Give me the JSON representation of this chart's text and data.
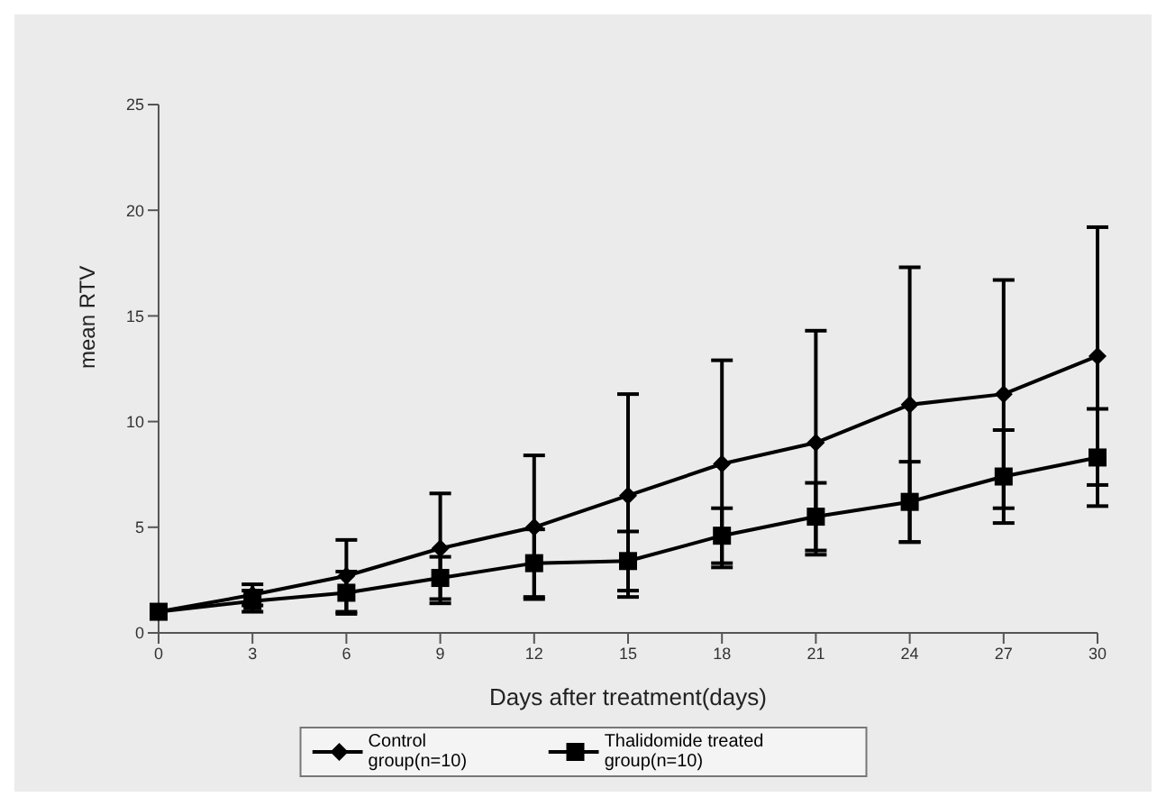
{
  "chart_data": {
    "type": "line",
    "xlabel": "Days after treatment(days)",
    "ylabel": "mean RTV",
    "categories": [
      "0",
      "3",
      "6",
      "9",
      "12",
      "15",
      "18",
      "21",
      "24",
      "27",
      "30"
    ],
    "series": [
      {
        "name": "Control group(n=10)",
        "color": "#000000",
        "marker": "diamond",
        "values": [
          1,
          1.8,
          2.7,
          4,
          5,
          6.5,
          8,
          9,
          10.8,
          11.3,
          13.1
        ],
        "errors": [
          0,
          0.5,
          1.7,
          2.6,
          3.4,
          4.8,
          4.9,
          5.3,
          6.5,
          5.4,
          6.1
        ]
      },
      {
        "name": "Thalidomide treated group(n=10)",
        "color": "#000000",
        "marker": "square",
        "values": [
          1,
          1.5,
          1.9,
          2.6,
          3.3,
          3.4,
          4.6,
          5.5,
          6.2,
          7.4,
          8.3
        ],
        "errors": [
          0,
          0.5,
          1.0,
          1.0,
          1.6,
          1.4,
          1.3,
          1.6,
          1.9,
          2.2,
          2.3
        ]
      }
    ],
    "ylim": [
      0,
      25
    ],
    "yticks": [
      0,
      5,
      10,
      15,
      20,
      25
    ],
    "grid": false,
    "legend": "bottom",
    "line_style": "solid"
  }
}
